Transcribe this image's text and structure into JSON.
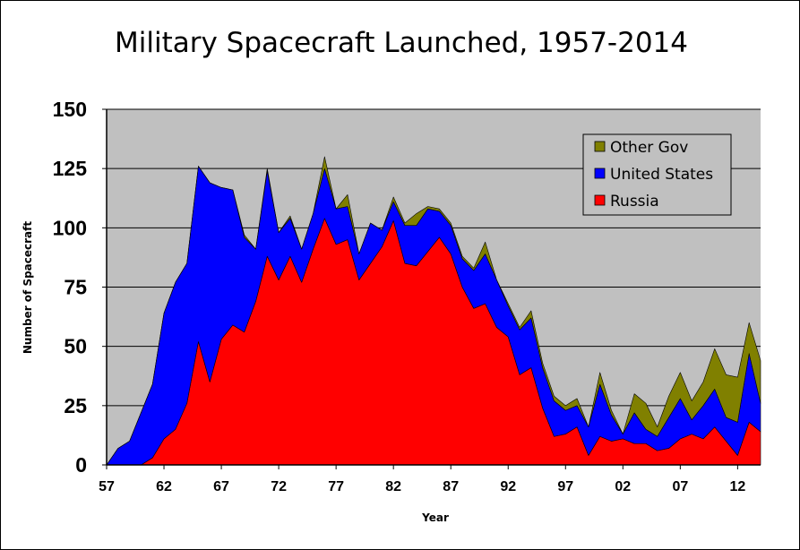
{
  "chart_data": {
    "type": "area",
    "stacked": true,
    "title": "Military Spacecraft Launched, 1957-2014",
    "xlabel": "Year",
    "ylabel": "Number of Spacecraft",
    "ylim": [
      0,
      150
    ],
    "yticks": [
      0,
      25,
      50,
      75,
      100,
      125,
      150
    ],
    "xtick_labels": [
      {
        "year": 1957,
        "label": "57"
      },
      {
        "year": 1962,
        "label": "62"
      },
      {
        "year": 1967,
        "label": "67"
      },
      {
        "year": 1972,
        "label": "72"
      },
      {
        "year": 1977,
        "label": "77"
      },
      {
        "year": 1982,
        "label": "82"
      },
      {
        "year": 1987,
        "label": "87"
      },
      {
        "year": 1992,
        "label": "92"
      },
      {
        "year": 1997,
        "label": "97"
      },
      {
        "year": 2002,
        "label": "02"
      },
      {
        "year": 2007,
        "label": "07"
      },
      {
        "year": 2012,
        "label": "12"
      }
    ],
    "grid": true,
    "legend_position": "top-right",
    "x": [
      1957,
      1958,
      1959,
      1960,
      1961,
      1962,
      1963,
      1964,
      1965,
      1966,
      1967,
      1968,
      1969,
      1970,
      1971,
      1972,
      1973,
      1974,
      1975,
      1976,
      1977,
      1978,
      1979,
      1980,
      1981,
      1982,
      1983,
      1984,
      1985,
      1986,
      1987,
      1988,
      1989,
      1990,
      1991,
      1992,
      1993,
      1994,
      1995,
      1996,
      1997,
      1998,
      1999,
      2000,
      2001,
      2002,
      2003,
      2004,
      2005,
      2006,
      2007,
      2008,
      2009,
      2010,
      2011,
      2012,
      2013,
      2014
    ],
    "series": [
      {
        "name": "Russia",
        "color": "#ff0000",
        "values": [
          0,
          0,
          0,
          0,
          3,
          11,
          15,
          26,
          52,
          35,
          53,
          59,
          56,
          69,
          88,
          78,
          88,
          77,
          91,
          104,
          93,
          95,
          78,
          85,
          92,
          103,
          85,
          84,
          90,
          96,
          89,
          75,
          66,
          68,
          58,
          54,
          38,
          41,
          24,
          12,
          13,
          16,
          4,
          12,
          10,
          11,
          9,
          9,
          6,
          7,
          11,
          13,
          11,
          16,
          10,
          4,
          18,
          14
        ]
      },
      {
        "name": "United States",
        "color": "#0000ff",
        "values": [
          0,
          7,
          10,
          22,
          31,
          53,
          62,
          59,
          74,
          84,
          64,
          57,
          40,
          22,
          36,
          20,
          16,
          14,
          15,
          21,
          15,
          14,
          11,
          17,
          7,
          8,
          16,
          17,
          18,
          11,
          12,
          12,
          16,
          21,
          20,
          13,
          19,
          21,
          17,
          15,
          10,
          9,
          12,
          22,
          11,
          2,
          13,
          6,
          6,
          13,
          17,
          6,
          14,
          16,
          10,
          14,
          29,
          12
        ]
      },
      {
        "name": "Other Gov",
        "color": "#808000",
        "values": [
          0,
          0,
          0,
          0,
          0,
          0,
          0,
          0,
          0,
          0,
          0,
          0,
          1,
          0,
          1,
          0,
          1,
          0,
          0,
          5,
          0,
          5,
          0,
          0,
          0,
          2,
          1,
          5,
          1,
          1,
          1,
          1,
          1,
          5,
          0,
          1,
          1,
          3,
          2,
          2,
          2,
          3,
          0,
          5,
          2,
          0,
          8,
          11,
          4,
          9,
          11,
          8,
          10,
          17,
          18,
          19,
          13,
          18
        ]
      }
    ]
  }
}
